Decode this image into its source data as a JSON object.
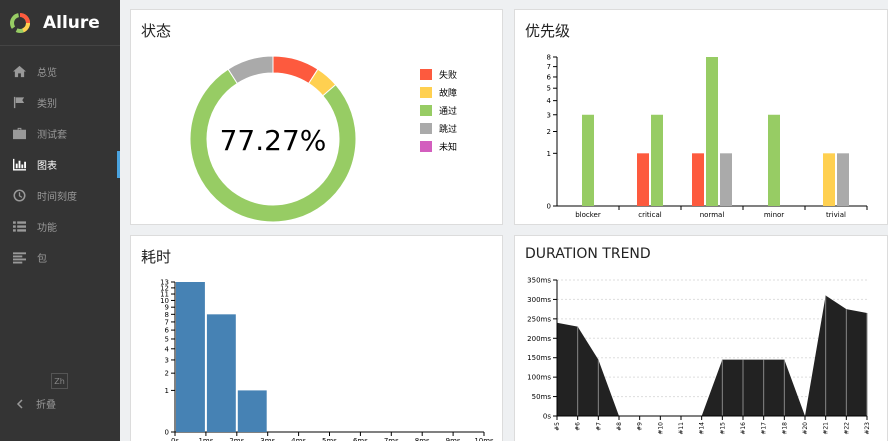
{
  "app": {
    "name": "Allure"
  },
  "sidebar": {
    "items": [
      {
        "label": "总览",
        "icon": "home-icon"
      },
      {
        "label": "类别",
        "icon": "flag-icon"
      },
      {
        "label": "测试套",
        "icon": "briefcase-icon"
      },
      {
        "label": "图表",
        "icon": "bar-chart-icon",
        "active": true
      },
      {
        "label": "时间刻度",
        "icon": "clock-icon"
      },
      {
        "label": "功能",
        "icon": "list-icon"
      },
      {
        "label": "包",
        "icon": "align-left-icon"
      }
    ],
    "language": "Zh",
    "collapse_label": "折叠"
  },
  "panels": {
    "status_title": "状态",
    "priority_title": "优先级",
    "duration_title": "耗时",
    "trend_title": "DURATION TREND"
  },
  "colors": {
    "failed": "#fd5a3e",
    "broken": "#ffd050",
    "passed": "#97cc64",
    "skipped": "#aaaaaa",
    "unknown": "#d35ebe",
    "duration_bar": "#4682b4",
    "trend_fill": "#222222"
  },
  "chart_data": [
    {
      "type": "pie",
      "title": "状态",
      "center_label": "77.27%",
      "slices": [
        {
          "name": "失败",
          "value": 2
        },
        {
          "name": "故障",
          "value": 1
        },
        {
          "name": "通过",
          "value": 17
        },
        {
          "name": "跳过",
          "value": 2
        },
        {
          "name": "未知",
          "value": 0
        }
      ]
    },
    {
      "type": "bar",
      "title": "优先级",
      "categories": [
        "blocker",
        "critical",
        "normal",
        "minor",
        "trivial"
      ],
      "series": [
        {
          "name": "失败",
          "values": [
            0,
            1,
            1,
            0,
            0
          ]
        },
        {
          "name": "故障",
          "values": [
            0,
            0,
            0,
            0,
            1
          ]
        },
        {
          "name": "通过",
          "values": [
            3,
            3,
            8,
            3,
            0
          ]
        },
        {
          "name": "跳过",
          "values": [
            0,
            0,
            1,
            0,
            1
          ]
        }
      ],
      "y_ticks": [
        "0",
        "1",
        "2",
        "3",
        "4",
        "5",
        "6",
        "7",
        "8"
      ],
      "y_scale": "sqrt"
    },
    {
      "type": "bar",
      "title": "耗时",
      "x_ticks": [
        "0s",
        "1ms",
        "2ms",
        "3ms",
        "4ms",
        "5ms",
        "6ms",
        "7ms",
        "8ms",
        "9ms",
        "10ms"
      ],
      "bins": [
        {
          "from": 0,
          "to": 1,
          "count": 13
        },
        {
          "from": 1,
          "to": 2,
          "count": 8
        },
        {
          "from": 2,
          "to": 3,
          "count": 1
        }
      ],
      "y_ticks": [
        "0",
        "1",
        "2",
        "3",
        "4",
        "5",
        "6",
        "7",
        "8",
        "9",
        "10",
        "11",
        "12",
        "13"
      ],
      "y_scale": "sqrt"
    },
    {
      "type": "area",
      "title": "DURATION TREND",
      "x": [
        "#5",
        "#6",
        "#7",
        "#8",
        "#9",
        "#10",
        "#11",
        "#14",
        "#15",
        "#16",
        "#17",
        "#18",
        "#20",
        "#21",
        "#22",
        "#23"
      ],
      "values": [
        240,
        230,
        145,
        0,
        0,
        0,
        0,
        0,
        145,
        145,
        145,
        145,
        0,
        310,
        275,
        265
      ],
      "y_ticks": [
        "0s",
        "50ms",
        "100ms",
        "150ms",
        "200ms",
        "250ms",
        "300ms",
        "350ms"
      ],
      "ylim": [
        0,
        350
      ]
    }
  ]
}
